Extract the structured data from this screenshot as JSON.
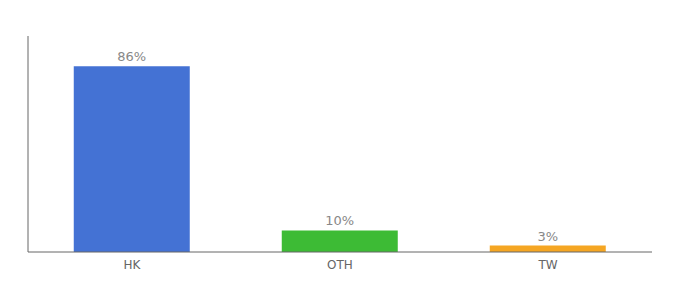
{
  "chart_data": {
    "type": "bar",
    "categories": [
      "HK",
      "OTH",
      "TW"
    ],
    "values": [
      86,
      10,
      3
    ],
    "value_labels": [
      "86%",
      "10%",
      "3%"
    ],
    "colors": [
      "#4472d4",
      "#3dbb35",
      "#f5a623"
    ],
    "ylim": [
      0,
      100
    ],
    "data_labels": true,
    "tick_labels": "x",
    "grid": false
  }
}
